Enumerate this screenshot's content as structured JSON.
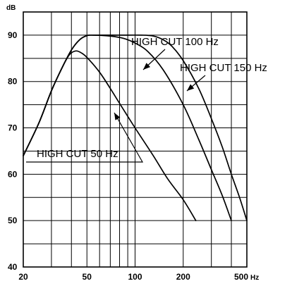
{
  "chart_data": {
    "type": "line",
    "title": "",
    "xlabel": "",
    "ylabel": "",
    "x_scale": "log",
    "xlim": [
      20,
      500
    ],
    "ylim": [
      40,
      95
    ],
    "grid": true,
    "x_unit": "Hz",
    "y_unit": "dB",
    "x_ticks": [
      {
        "value": 20,
        "label": "20"
      },
      {
        "value": 50,
        "label": "50"
      },
      {
        "value": 100,
        "label": "100"
      },
      {
        "value": 200,
        "label": "200"
      },
      {
        "value": 500,
        "label": "500"
      }
    ],
    "x_minor_grid": [
      30,
      40,
      60,
      70,
      80,
      90,
      300,
      400
    ],
    "y_ticks": [
      {
        "value": 40,
        "label": "40"
      },
      {
        "value": 50,
        "label": "50"
      },
      {
        "value": 60,
        "label": "60"
      },
      {
        "value": 70,
        "label": "70"
      },
      {
        "value": 80,
        "label": "80"
      },
      {
        "value": 90,
        "label": "90"
      }
    ],
    "series": [
      {
        "name": "HIGH CUT 50 Hz",
        "points": [
          [
            20,
            64
          ],
          [
            25,
            71
          ],
          [
            30,
            78
          ],
          [
            35,
            83
          ],
          [
            38,
            85.3
          ],
          [
            40,
            86.2
          ],
          [
            43,
            86.6
          ],
          [
            46,
            86.2
          ],
          [
            50,
            85.2
          ],
          [
            60,
            82
          ],
          [
            70,
            78.5
          ],
          [
            80,
            75.3
          ],
          [
            100,
            70
          ],
          [
            130,
            64
          ],
          [
            160,
            59
          ],
          [
            200,
            54.5
          ],
          [
            240,
            50
          ]
        ]
      },
      {
        "name": "HIGH CUT 100 Hz",
        "points": [
          [
            20,
            64
          ],
          [
            25,
            71
          ],
          [
            30,
            78
          ],
          [
            35,
            83
          ],
          [
            40,
            86.8
          ],
          [
            45,
            89
          ],
          [
            50,
            89.9
          ],
          [
            55,
            90
          ],
          [
            70,
            89.8
          ],
          [
            85,
            89.3
          ],
          [
            100,
            88.3
          ],
          [
            120,
            86.5
          ],
          [
            150,
            82.5
          ],
          [
            200,
            75
          ],
          [
            250,
            67.5
          ],
          [
            300,
            61
          ],
          [
            350,
            55.5
          ],
          [
            400,
            50
          ]
        ]
      },
      {
        "name": "HIGH CUT 150 Hz",
        "points": [
          [
            20,
            64
          ],
          [
            25,
            71
          ],
          [
            30,
            78
          ],
          [
            35,
            83
          ],
          [
            40,
            86.8
          ],
          [
            45,
            89
          ],
          [
            50,
            89.9
          ],
          [
            55,
            90
          ],
          [
            80,
            90
          ],
          [
            110,
            90
          ],
          [
            130,
            89.8
          ],
          [
            150,
            89
          ],
          [
            170,
            87.6
          ],
          [
            200,
            84.5
          ],
          [
            250,
            78.5
          ],
          [
            300,
            72
          ],
          [
            350,
            66
          ],
          [
            400,
            60
          ],
          [
            450,
            55
          ],
          [
            500,
            50
          ]
        ]
      }
    ],
    "annotations": [
      {
        "text": "HIGH CUT 100 Hz"
      },
      {
        "text": "HIGH CUT 150 Hz"
      },
      {
        "text": "HIGH CUT 50 Hz"
      }
    ]
  }
}
